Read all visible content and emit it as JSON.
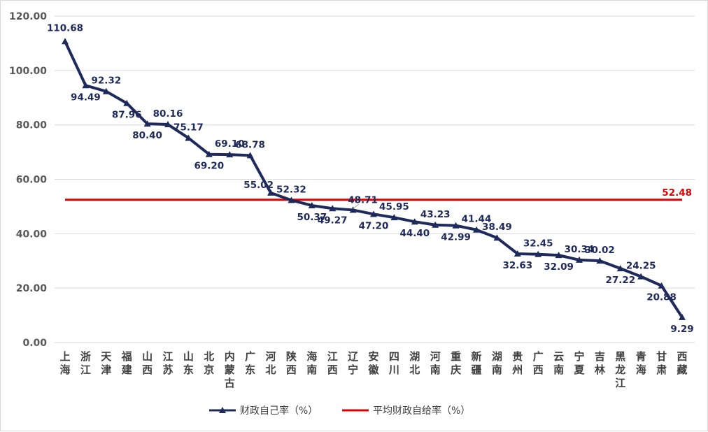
{
  "chart_data": {
    "type": "line",
    "categories": [
      "上海",
      "浙江",
      "天津",
      "福建",
      "山西",
      "江苏",
      "山东",
      "北京",
      "内蒙古",
      "广东",
      "河北",
      "陕西",
      "海南",
      "江西",
      "辽宁",
      "安徽",
      "四川",
      "湖北",
      "河南",
      "重庆",
      "新疆",
      "湖南",
      "贵州",
      "广西",
      "云南",
      "宁夏",
      "吉林",
      "黑龙江",
      "青海",
      "甘肃",
      "西藏"
    ],
    "series": [
      {
        "name": "财政自己率（%）",
        "color": "#1f2a5c",
        "marker": "triangle",
        "values": [
          110.68,
          94.49,
          92.32,
          87.96,
          80.4,
          80.16,
          75.17,
          69.2,
          69.1,
          68.78,
          55.02,
          52.32,
          50.37,
          49.27,
          48.71,
          47.2,
          45.95,
          44.4,
          43.23,
          42.99,
          41.44,
          38.49,
          32.63,
          32.45,
          32.09,
          30.34,
          30.02,
          27.22,
          24.25,
          20.88,
          9.29
        ]
      },
      {
        "name": "平均财政自给率（%）",
        "color": "#e00000",
        "value": 52.48,
        "label": "52.48"
      }
    ],
    "labels": [
      "110.68",
      "94.49",
      "92.32",
      "87.96",
      "80.40",
      "80.16",
      "75.17",
      "69.20",
      "69.10",
      "68.78",
      "55.02",
      "52.32",
      "50.37",
      "49.27",
      "48.71",
      "47.20",
      "45.95",
      "44.40",
      "43.23",
      "42.99",
      "41.44",
      "38.49",
      "32.63",
      "32.45",
      "32.09",
      "30.34",
      "30.02",
      "27.22",
      "24.25",
      "20.88",
      "9.29"
    ],
    "yticks": [
      "0.00",
      "20.00",
      "40.00",
      "60.00",
      "80.00",
      "100.00",
      "120.00"
    ],
    "ylim": [
      0,
      120
    ],
    "grid": true,
    "legend_position": "bottom",
    "gridline_color": "#d9d9d9"
  }
}
